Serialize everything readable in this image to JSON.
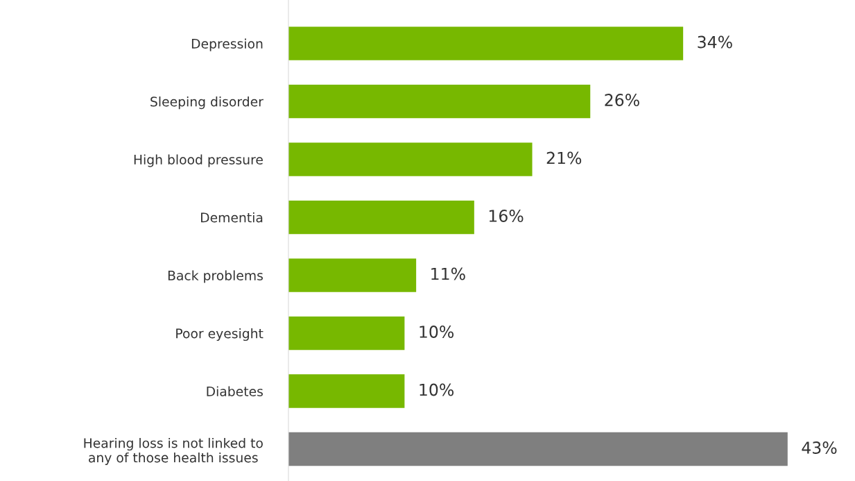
{
  "chart_data": {
    "type": "bar",
    "orientation": "horizontal",
    "categories": [
      "Depression",
      "Sleeping disorder",
      "High blood pressure",
      "Dementia",
      "Back problems",
      "Poor eyesight",
      "Diabetes",
      "Hearing loss is not linked to\nany of those health issues"
    ],
    "values": [
      34,
      26,
      21,
      16,
      11,
      10,
      10,
      43
    ],
    "colors": [
      "#77b800",
      "#77b800",
      "#77b800",
      "#77b800",
      "#77b800",
      "#77b800",
      "#77b800",
      "#7f7f7f"
    ],
    "value_labels": [
      "34%",
      "26%",
      "21%",
      "16%",
      "11%",
      "10%",
      "10%",
      "43%"
    ],
    "grid": false,
    "legend": false
  }
}
